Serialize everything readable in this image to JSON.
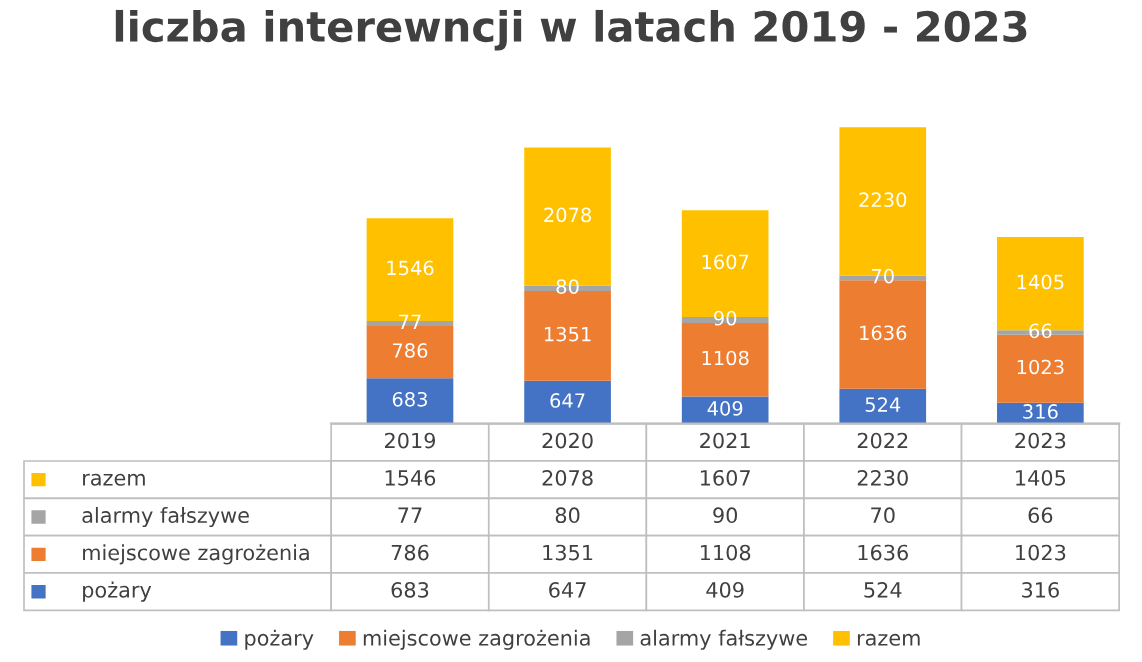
{
  "chart_data": {
    "type": "bar",
    "title": "liczba interewncji w latach 2019 - 2023",
    "stacked": true,
    "categories": [
      "2019",
      "2020",
      "2021",
      "2022",
      "2023"
    ],
    "series": [
      {
        "name": "pożary",
        "color": "#4472c4",
        "values": [
          683,
          647,
          409,
          524,
          316
        ],
        "value_labels": [
          "683",
          "647",
          "409",
          "524",
          "316"
        ]
      },
      {
        "name": "miejscowe zagrożenia",
        "color": "#ed7d31",
        "values": [
          786,
          1351,
          1108,
          1636,
          1023
        ],
        "value_labels": [
          "786",
          "1351",
          "1108",
          "1636",
          "1023"
        ]
      },
      {
        "name": "alarmy fałszywe",
        "color": "#a5a5a5",
        "values": [
          77,
          80,
          90,
          70,
          66
        ],
        "value_labels": [
          "77",
          "80",
          "90",
          "70",
          "66"
        ]
      },
      {
        "name": "razem",
        "color": "#ffc000",
        "values": [
          1546,
          2078,
          1607,
          2230,
          1405
        ],
        "value_labels": [
          "1546",
          "2078",
          "1607",
          "2230",
          "1405"
        ]
      }
    ],
    "legend": "bottom"
  }
}
